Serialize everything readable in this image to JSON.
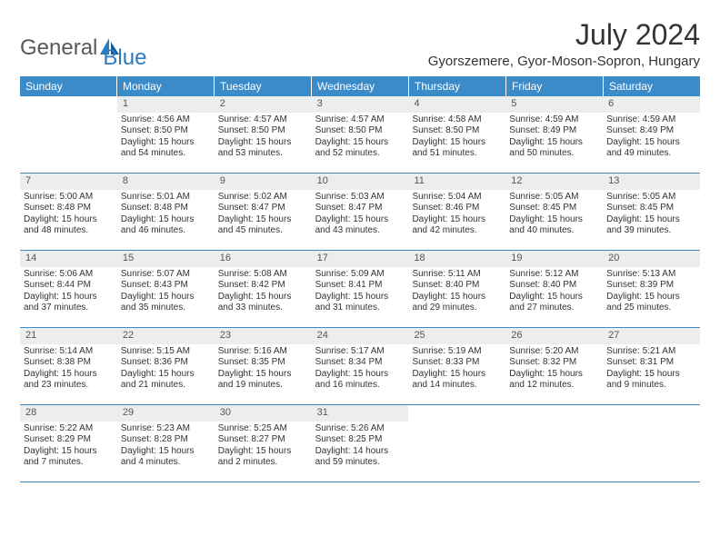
{
  "brand": {
    "name1": "General",
    "name2": "Blue"
  },
  "title": "July 2024",
  "location": "Gyorszemere, Gyor-Moson-Sopron, Hungary",
  "colors": {
    "header_bg": "#3b8bc8",
    "header_text": "#ffffff",
    "daynum_bg": "#eceded",
    "border": "#3b8bc8",
    "body_text": "#333333",
    "logo_gray": "#58595b",
    "logo_blue": "#2b7bbf"
  },
  "day_names": [
    "Sunday",
    "Monday",
    "Tuesday",
    "Wednesday",
    "Thursday",
    "Friday",
    "Saturday"
  ],
  "weeks": [
    [
      {
        "n": "",
        "empty": true
      },
      {
        "n": "1",
        "sr": "4:56 AM",
        "ss": "8:50 PM",
        "dl": "15 hours and 54 minutes."
      },
      {
        "n": "2",
        "sr": "4:57 AM",
        "ss": "8:50 PM",
        "dl": "15 hours and 53 minutes."
      },
      {
        "n": "3",
        "sr": "4:57 AM",
        "ss": "8:50 PM",
        "dl": "15 hours and 52 minutes."
      },
      {
        "n": "4",
        "sr": "4:58 AM",
        "ss": "8:50 PM",
        "dl": "15 hours and 51 minutes."
      },
      {
        "n": "5",
        "sr": "4:59 AM",
        "ss": "8:49 PM",
        "dl": "15 hours and 50 minutes."
      },
      {
        "n": "6",
        "sr": "4:59 AM",
        "ss": "8:49 PM",
        "dl": "15 hours and 49 minutes."
      }
    ],
    [
      {
        "n": "7",
        "sr": "5:00 AM",
        "ss": "8:48 PM",
        "dl": "15 hours and 48 minutes."
      },
      {
        "n": "8",
        "sr": "5:01 AM",
        "ss": "8:48 PM",
        "dl": "15 hours and 46 minutes."
      },
      {
        "n": "9",
        "sr": "5:02 AM",
        "ss": "8:47 PM",
        "dl": "15 hours and 45 minutes."
      },
      {
        "n": "10",
        "sr": "5:03 AM",
        "ss": "8:47 PM",
        "dl": "15 hours and 43 minutes."
      },
      {
        "n": "11",
        "sr": "5:04 AM",
        "ss": "8:46 PM",
        "dl": "15 hours and 42 minutes."
      },
      {
        "n": "12",
        "sr": "5:05 AM",
        "ss": "8:45 PM",
        "dl": "15 hours and 40 minutes."
      },
      {
        "n": "13",
        "sr": "5:05 AM",
        "ss": "8:45 PM",
        "dl": "15 hours and 39 minutes."
      }
    ],
    [
      {
        "n": "14",
        "sr": "5:06 AM",
        "ss": "8:44 PM",
        "dl": "15 hours and 37 minutes."
      },
      {
        "n": "15",
        "sr": "5:07 AM",
        "ss": "8:43 PM",
        "dl": "15 hours and 35 minutes."
      },
      {
        "n": "16",
        "sr": "5:08 AM",
        "ss": "8:42 PM",
        "dl": "15 hours and 33 minutes."
      },
      {
        "n": "17",
        "sr": "5:09 AM",
        "ss": "8:41 PM",
        "dl": "15 hours and 31 minutes."
      },
      {
        "n": "18",
        "sr": "5:11 AM",
        "ss": "8:40 PM",
        "dl": "15 hours and 29 minutes."
      },
      {
        "n": "19",
        "sr": "5:12 AM",
        "ss": "8:40 PM",
        "dl": "15 hours and 27 minutes."
      },
      {
        "n": "20",
        "sr": "5:13 AM",
        "ss": "8:39 PM",
        "dl": "15 hours and 25 minutes."
      }
    ],
    [
      {
        "n": "21",
        "sr": "5:14 AM",
        "ss": "8:38 PM",
        "dl": "15 hours and 23 minutes."
      },
      {
        "n": "22",
        "sr": "5:15 AM",
        "ss": "8:36 PM",
        "dl": "15 hours and 21 minutes."
      },
      {
        "n": "23",
        "sr": "5:16 AM",
        "ss": "8:35 PM",
        "dl": "15 hours and 19 minutes."
      },
      {
        "n": "24",
        "sr": "5:17 AM",
        "ss": "8:34 PM",
        "dl": "15 hours and 16 minutes."
      },
      {
        "n": "25",
        "sr": "5:19 AM",
        "ss": "8:33 PM",
        "dl": "15 hours and 14 minutes."
      },
      {
        "n": "26",
        "sr": "5:20 AM",
        "ss": "8:32 PM",
        "dl": "15 hours and 12 minutes."
      },
      {
        "n": "27",
        "sr": "5:21 AM",
        "ss": "8:31 PM",
        "dl": "15 hours and 9 minutes."
      }
    ],
    [
      {
        "n": "28",
        "sr": "5:22 AM",
        "ss": "8:29 PM",
        "dl": "15 hours and 7 minutes."
      },
      {
        "n": "29",
        "sr": "5:23 AM",
        "ss": "8:28 PM",
        "dl": "15 hours and 4 minutes."
      },
      {
        "n": "30",
        "sr": "5:25 AM",
        "ss": "8:27 PM",
        "dl": "15 hours and 2 minutes."
      },
      {
        "n": "31",
        "sr": "5:26 AM",
        "ss": "8:25 PM",
        "dl": "14 hours and 59 minutes."
      },
      {
        "n": "",
        "empty": true
      },
      {
        "n": "",
        "empty": true
      },
      {
        "n": "",
        "empty": true
      }
    ]
  ],
  "labels": {
    "sunrise": "Sunrise:",
    "sunset": "Sunset:",
    "daylight": "Daylight:"
  }
}
